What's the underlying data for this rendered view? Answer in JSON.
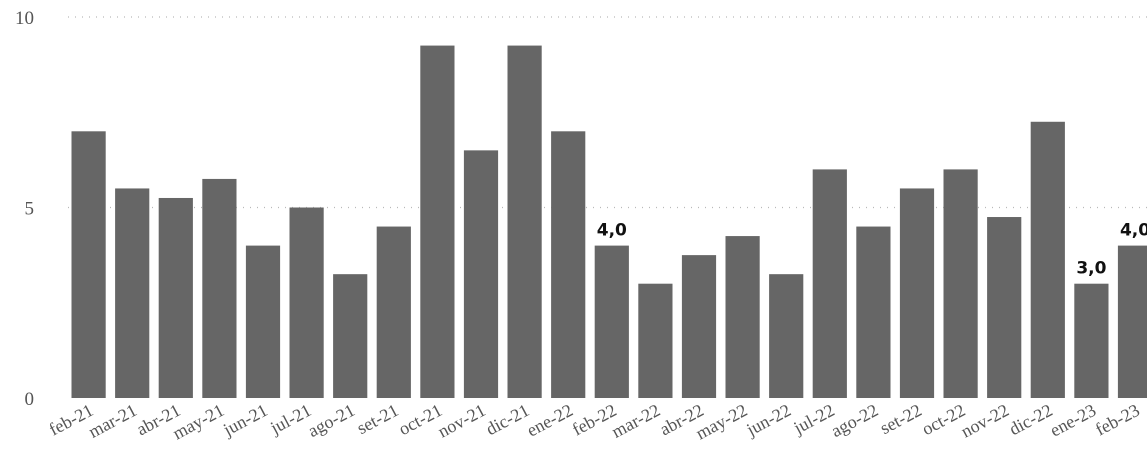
{
  "chart_data": {
    "type": "bar",
    "categories": [
      "feb-21",
      "mar-21",
      "abr-21",
      "may-21",
      "jun-21",
      "jul-21",
      "ago-21",
      "set-21",
      "oct-21",
      "nov-21",
      "dic-21",
      "ene-22",
      "feb-22",
      "mar-22",
      "abr-22",
      "may-22",
      "jun-22",
      "jul-22",
      "ago-22",
      "set-22",
      "oct-22",
      "nov-22",
      "dic-22",
      "ene-23",
      "feb-23"
    ],
    "values": [
      7.0,
      5.5,
      5.25,
      5.75,
      4.0,
      5.0,
      3.25,
      4.5,
      9.25,
      6.5,
      9.25,
      7.0,
      4.0,
      3.0,
      3.75,
      4.25,
      3.25,
      6.0,
      4.5,
      5.5,
      6.0,
      4.75,
      7.25,
      3.0,
      4.0
    ],
    "data_labels": [
      {
        "category": "feb-22",
        "text": "4,0"
      },
      {
        "category": "ene-23",
        "text": "3,0"
      },
      {
        "category": "feb-23",
        "text": "4,0"
      }
    ],
    "y_ticks": [
      {
        "value": 0,
        "label": "0"
      },
      {
        "value": 5,
        "label": "5"
      },
      {
        "value": 10,
        "label": "10"
      }
    ],
    "ylim": [
      0,
      10
    ],
    "grid": true,
    "title": "",
    "xlabel": "",
    "ylabel": "",
    "colors": {
      "bar": "#666666",
      "grid": "#b9b9b9",
      "tick_text": "#555555",
      "label_text": "#111111"
    }
  }
}
